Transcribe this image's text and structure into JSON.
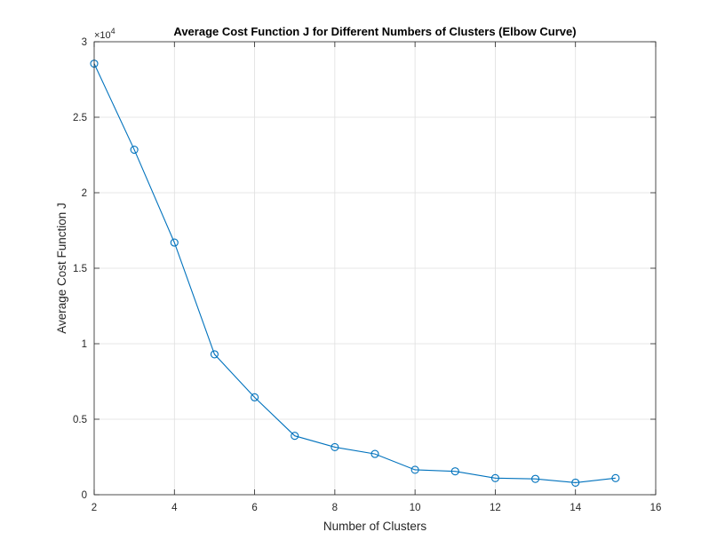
{
  "chart_data": {
    "type": "line",
    "title": "Average Cost Function J for Different Numbers of Clusters (Elbow Curve)",
    "xlabel": "Number of Clusters",
    "ylabel": "Average Cost Function J",
    "xlim": [
      2,
      16
    ],
    "ylim": [
      0,
      30000
    ],
    "x_ticks": [
      2,
      4,
      6,
      8,
      10,
      12,
      14,
      16
    ],
    "x_tick_labels": [
      "2",
      "4",
      "6",
      "8",
      "10",
      "12",
      "14",
      "16"
    ],
    "y_ticks": [
      0,
      5000,
      10000,
      15000,
      20000,
      25000,
      30000
    ],
    "y_tick_labels": [
      "0",
      "0.5",
      "1",
      "1.5",
      "2",
      "2.5",
      "3"
    ],
    "y_exponent_label": "×10",
    "y_exponent_power": "4",
    "grid": true,
    "marker": "circle",
    "line_color": "#0072BD",
    "x": [
      2,
      3,
      4,
      5,
      6,
      7,
      8,
      9,
      10,
      11,
      12,
      13,
      14,
      15
    ],
    "series": [
      {
        "values": [
          28550,
          22850,
          16700,
          9300,
          6450,
          3900,
          3150,
          2700,
          1650,
          1550,
          1100,
          1050,
          800,
          1100
        ]
      }
    ]
  }
}
